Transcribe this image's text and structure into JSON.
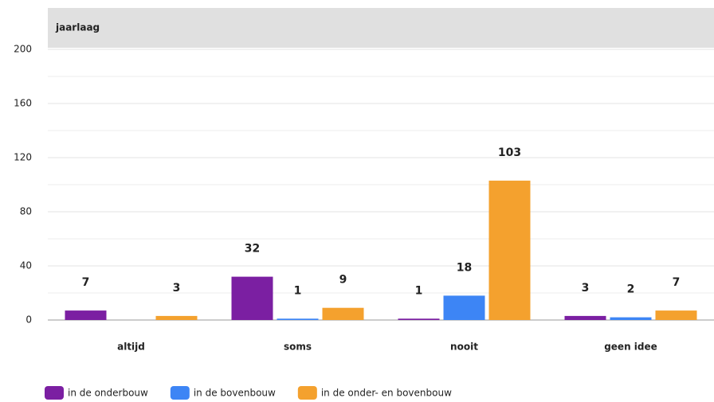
{
  "chart_data": {
    "type": "bar",
    "title": "jaarlaag",
    "categories": [
      "altijd",
      "soms",
      "nooit",
      "geen idee"
    ],
    "series": [
      {
        "name": "in de onderbouw",
        "color": "#7b1fa2",
        "values": [
          7,
          32,
          1,
          3
        ]
      },
      {
        "name": "in de bovenbouw",
        "color": "#3d85f5",
        "values": [
          null,
          1,
          18,
          2
        ]
      },
      {
        "name": "in de onder- en bovenbouw",
        "color": "#f4a12e",
        "values": [
          3,
          9,
          103,
          7
        ]
      }
    ],
    "ylim": [
      0,
      200
    ],
    "yticks": [
      0,
      40,
      80,
      120,
      160,
      200
    ],
    "minor_yticks": [
      20,
      60,
      100,
      140,
      180
    ],
    "grid": true,
    "legend": "bottom"
  }
}
